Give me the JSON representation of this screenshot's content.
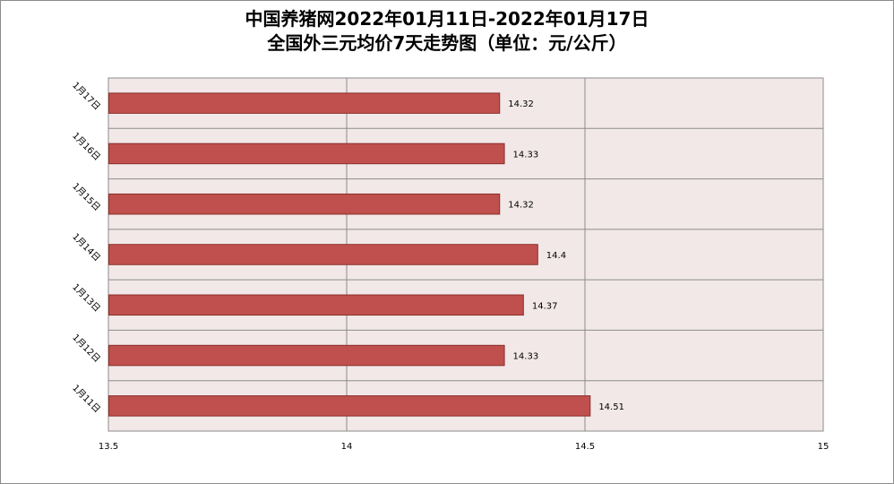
{
  "chart_data": {
    "type": "bar",
    "orientation": "horizontal",
    "title_line1": "中国养猪网2022年01月11日-2022年01月17日",
    "title_line2": "全国外三元均价7天走势图（单位：元/公斤）",
    "categories": [
      "1月11日",
      "1月12日",
      "1月13日",
      "1月14日",
      "1月15日",
      "1月16日",
      "1月17日"
    ],
    "values": [
      14.51,
      14.33,
      14.37,
      14.4,
      14.32,
      14.33,
      14.32
    ],
    "value_labels": [
      "14.51",
      "14.33",
      "14.37",
      "14.4",
      "14.32",
      "14.33",
      "14.32"
    ],
    "xlim": [
      13.5,
      15
    ],
    "x_ticks": [
      13.5,
      14,
      14.5,
      15
    ],
    "x_tick_labels": [
      "13.5",
      "14",
      "14.5",
      "15"
    ],
    "grid": true,
    "legend": "none",
    "bar_color": "#C0504D",
    "plot_background": "#F2E8E8"
  }
}
